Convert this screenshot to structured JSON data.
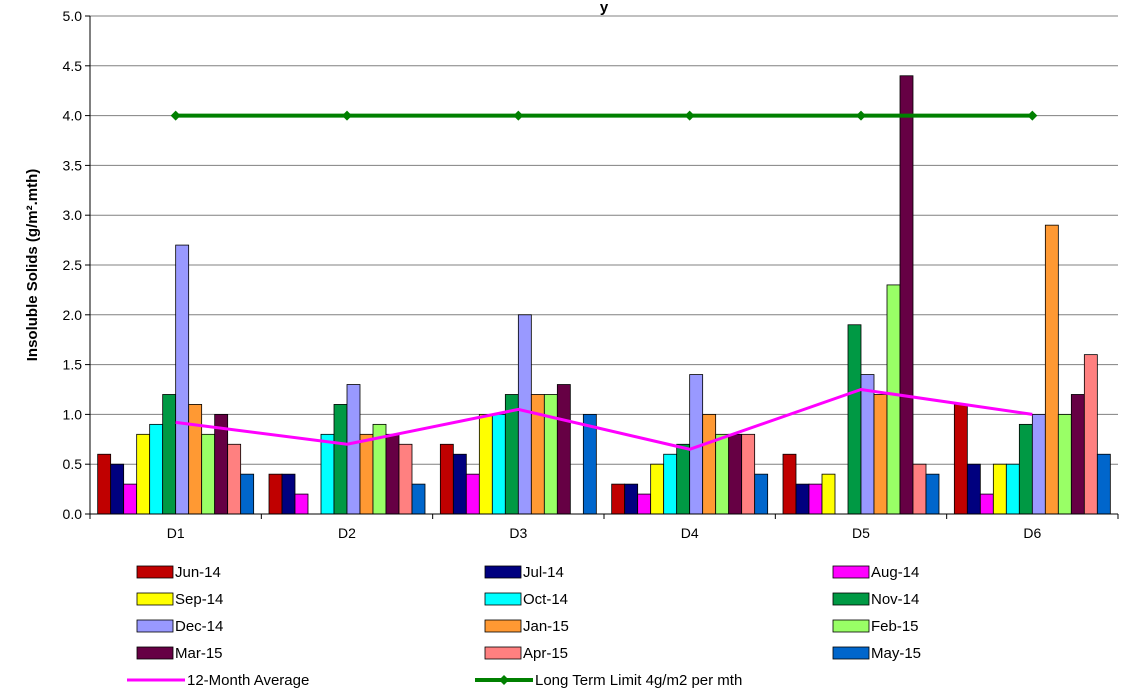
{
  "chart_data": {
    "type": "bar",
    "title": "y",
    "ylabel": "Insoluble Solids (g/m².mth)",
    "xlabel": "",
    "ylim": [
      0,
      5
    ],
    "yticks": [
      "0.0",
      "0.5",
      "1.0",
      "1.5",
      "2.0",
      "2.5",
      "3.0",
      "3.5",
      "4.0",
      "4.5",
      "5.0"
    ],
    "categories": [
      "D1",
      "D2",
      "D3",
      "D4",
      "D5",
      "D6"
    ],
    "grid": true,
    "legend_position": "bottom",
    "series": [
      {
        "name": "Jun-14",
        "color": "#c00000",
        "values": [
          0.6,
          0.4,
          0.7,
          0.3,
          0.6,
          1.1
        ]
      },
      {
        "name": "Jul-14",
        "color": "#00007f",
        "values": [
          0.5,
          0.4,
          0.6,
          0.3,
          0.3,
          0.5
        ]
      },
      {
        "name": "Aug-14",
        "color": "#ff00ff",
        "values": [
          0.3,
          0.2,
          0.4,
          0.2,
          0.3,
          0.2
        ]
      },
      {
        "name": "Sep-14",
        "color": "#ffff00",
        "values": [
          0.8,
          0,
          1.0,
          0.5,
          0.4,
          0.5
        ]
      },
      {
        "name": "Oct-14",
        "color": "#00ffff",
        "values": [
          0.9,
          0.8,
          1.0,
          0.6,
          0,
          0.5
        ]
      },
      {
        "name": "Nov-14",
        "color": "#009944",
        "values": [
          1.2,
          1.1,
          1.2,
          0.7,
          1.9,
          0.9
        ]
      },
      {
        "name": "Dec-14",
        "color": "#9999ff",
        "values": [
          2.7,
          1.3,
          2.0,
          1.4,
          1.4,
          1.0
        ]
      },
      {
        "name": "Jan-15",
        "color": "#ff9933",
        "values": [
          1.1,
          0.8,
          1.2,
          1.0,
          1.2,
          2.9
        ]
      },
      {
        "name": "Feb-15",
        "color": "#99ff66",
        "values": [
          0.8,
          0.9,
          1.2,
          0.8,
          2.3,
          1.0
        ]
      },
      {
        "name": "Mar-15",
        "color": "#660044",
        "values": [
          1.0,
          0.8,
          1.3,
          0.8,
          4.4,
          1.2
        ]
      },
      {
        "name": "Apr-15",
        "color": "#ff8080",
        "values": [
          0.7,
          0.7,
          0,
          0.8,
          0.5,
          1.6
        ]
      },
      {
        "name": "May-15",
        "color": "#0066cc",
        "values": [
          0.4,
          0.3,
          1.0,
          0.4,
          0.4,
          0.6
        ]
      }
    ],
    "lines": [
      {
        "name": "12-Month Average",
        "color": "#ff00ff",
        "values": [
          0.92,
          0.7,
          1.05,
          0.65,
          1.25,
          1.0
        ],
        "marker": "none"
      },
      {
        "name": "Long Term Limit 4g/m2 per mth",
        "color": "#008000",
        "values": [
          4,
          4,
          4,
          4,
          4,
          4
        ],
        "marker": "diamond"
      }
    ]
  }
}
